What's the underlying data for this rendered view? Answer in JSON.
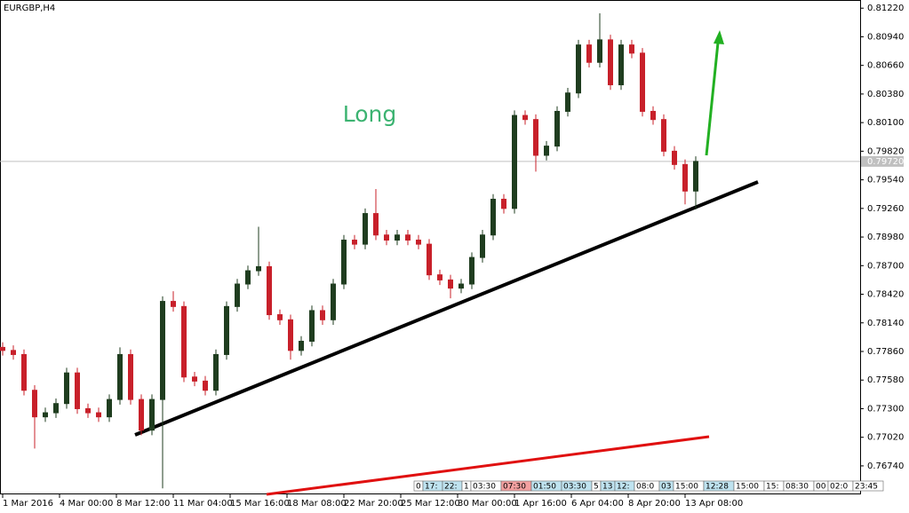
{
  "chart_data": {
    "type": "candlestick",
    "title": "EURGBP,H4",
    "annotation": "Long",
    "up_color": "#1f3d1f",
    "down_color": "#c8202a",
    "x": [
      0,
      3,
      6,
      9,
      12,
      15,
      18,
      21,
      24,
      27,
      30,
      33,
      36,
      39,
      42,
      45,
      48,
      51,
      54,
      57,
      60,
      63,
      66,
      69,
      72,
      75,
      78,
      81,
      84,
      87,
      90,
      93,
      96,
      99,
      102,
      105,
      108,
      111,
      114,
      117,
      120,
      123,
      126,
      129,
      132,
      135,
      138,
      141,
      144,
      147,
      150,
      153,
      156,
      159,
      162,
      165,
      168,
      171,
      174,
      177,
      180,
      183,
      186,
      189,
      192,
      195
    ],
    "open": [
      0.779,
      0.7787,
      0.7783,
      0.7748,
      0.7722,
      0.7726,
      0.7735,
      0.7765,
      0.773,
      0.7726,
      0.7722,
      0.7739,
      0.7783,
      0.7739,
      0.7709,
      0.7739,
      0.7835,
      0.783,
      0.7761,
      0.7757,
      0.7748,
      0.7783,
      0.783,
      0.7852,
      0.7865,
      0.7869,
      0.7822,
      0.7817,
      0.7787,
      0.7796,
      0.7826,
      0.7817,
      0.7852,
      0.7895,
      0.7891,
      0.7921,
      0.79,
      0.7895,
      0.79,
      0.7895,
      0.7891,
      0.7861,
      0.7856,
      0.7848,
      0.7852,
      0.7878,
      0.79,
      0.7935,
      0.7926,
      0.8017,
      0.8013,
      0.7978,
      0.7987,
      0.8021,
      0.8039,
      0.8086,
      0.8069,
      0.8091,
      0.8047,
      0.8086,
      0.8078,
      0.8021,
      0.8013,
      0.7982,
      0.7969,
      0.7943
    ],
    "high": [
      0.7795,
      0.7792,
      0.7788,
      0.7753,
      0.7731,
      0.774,
      0.777,
      0.777,
      0.7735,
      0.7731,
      0.7744,
      0.779,
      0.7788,
      0.7744,
      0.7744,
      0.784,
      0.7845,
      0.7835,
      0.7766,
      0.7762,
      0.7788,
      0.7835,
      0.7857,
      0.787,
      0.7908,
      0.7874,
      0.7827,
      0.7822,
      0.7801,
      0.7831,
      0.7831,
      0.7857,
      0.79,
      0.79,
      0.7926,
      0.7945,
      0.7905,
      0.7905,
      0.7905,
      0.79,
      0.7896,
      0.7866,
      0.7861,
      0.7857,
      0.7883,
      0.7905,
      0.794,
      0.794,
      0.8022,
      0.8022,
      0.8018,
      0.7992,
      0.8026,
      0.8044,
      0.8091,
      0.8091,
      0.8117,
      0.8096,
      0.8091,
      0.8091,
      0.8083,
      0.8026,
      0.8018,
      0.7987,
      0.7974,
      0.7977
    ],
    "low": [
      0.7782,
      0.7778,
      0.7743,
      0.7691,
      0.7717,
      0.7721,
      0.773,
      0.7725,
      0.7721,
      0.7717,
      0.7717,
      0.7734,
      0.7734,
      0.7704,
      0.7704,
      0.7652,
      0.7825,
      0.7756,
      0.7752,
      0.7743,
      0.7743,
      0.7778,
      0.7825,
      0.7847,
      0.786,
      0.7817,
      0.7812,
      0.7778,
      0.7782,
      0.7791,
      0.7812,
      0.7812,
      0.7847,
      0.7886,
      0.7886,
      0.7895,
      0.789,
      0.789,
      0.789,
      0.7886,
      0.7856,
      0.7851,
      0.7838,
      0.7843,
      0.7847,
      0.7873,
      0.7895,
      0.7921,
      0.7921,
      0.8008,
      0.7962,
      0.7973,
      0.7982,
      0.8016,
      0.8034,
      0.8064,
      0.8064,
      0.8042,
      0.8042,
      0.8073,
      0.8016,
      0.8008,
      0.7977,
      0.7964,
      0.793,
      0.7925
    ],
    "close": [
      0.7787,
      0.7783,
      0.7748,
      0.7722,
      0.7726,
      0.7735,
      0.7765,
      0.773,
      0.7726,
      0.7722,
      0.7739,
      0.7783,
      0.7739,
      0.7709,
      0.7739,
      0.7835,
      0.783,
      0.7761,
      0.7757,
      0.7748,
      0.7783,
      0.783,
      0.7852,
      0.7865,
      0.7869,
      0.7822,
      0.7817,
      0.7787,
      0.7796,
      0.7826,
      0.7817,
      0.7852,
      0.7895,
      0.7891,
      0.7921,
      0.79,
      0.7895,
      0.79,
      0.7895,
      0.7891,
      0.7861,
      0.7856,
      0.7848,
      0.7852,
      0.7878,
      0.79,
      0.7935,
      0.7926,
      0.8017,
      0.8013,
      0.7978,
      0.7987,
      0.8021,
      0.8039,
      0.8086,
      0.8069,
      0.8091,
      0.8047,
      0.8086,
      0.8078,
      0.8021,
      0.8013,
      0.7982,
      0.7969,
      0.7943,
      0.7972
    ],
    "xlim": [
      0,
      241.25
    ],
    "xticks": [
      {
        "value": 0,
        "label": "1 Mar 2016"
      },
      {
        "value": 16,
        "label": "4 Mar 00:00"
      },
      {
        "value": 32,
        "label": "8 Mar 12:00"
      },
      {
        "value": 48,
        "label": "11 Mar 04:00"
      },
      {
        "value": 64,
        "label": "15 Mar 16:00"
      },
      {
        "value": 80,
        "label": "18 Mar 08:00"
      },
      {
        "value": 96,
        "label": "22 Mar 20:00"
      },
      {
        "value": 112,
        "label": "25 Mar 12:00"
      },
      {
        "value": 128,
        "label": "30 Mar 00:00"
      },
      {
        "value": 144,
        "label": "1 Apr 16:00"
      },
      {
        "value": 160,
        "label": "6 Apr 04:00"
      },
      {
        "value": 176,
        "label": "8 Apr 20:00"
      },
      {
        "value": 192,
        "label": "13 Apr 08:00"
      }
    ],
    "ylim": [
      0.7647,
      0.813
    ],
    "yticks": [
      {
        "value": 0.8122,
        "label": "0.81220"
      },
      {
        "value": 0.8094,
        "label": "0.80940"
      },
      {
        "value": 0.8066,
        "label": "0.80660"
      },
      {
        "value": 0.8038,
        "label": "0.80380"
      },
      {
        "value": 0.801,
        "label": "0.80100"
      },
      {
        "value": 0.7982,
        "label": "0.79820"
      },
      {
        "value": 0.7954,
        "label": "0.79540"
      },
      {
        "value": 0.7926,
        "label": "0.79260"
      },
      {
        "value": 0.7898,
        "label": "0.78980"
      },
      {
        "value": 0.787,
        "label": "0.78700"
      },
      {
        "value": 0.7842,
        "label": "0.78420"
      },
      {
        "value": 0.7814,
        "label": "0.78140"
      },
      {
        "value": 0.7786,
        "label": "0.77860"
      },
      {
        "value": 0.7758,
        "label": "0.77580"
      },
      {
        "value": 0.773,
        "label": "0.77300"
      },
      {
        "value": 0.7702,
        "label": "0.77020"
      },
      {
        "value": 0.7674,
        "label": "0.76740"
      }
    ],
    "current_price": {
      "value": 0.7972,
      "label": "0.79720"
    },
    "events": [
      {
        "text": "0",
        "color": "#ffffff"
      },
      {
        "text": "17:",
        "color": "#bfe3f0"
      },
      {
        "text": "22:",
        "color": "#bfe3f0"
      },
      {
        "text": "1",
        "color": "#ffffff"
      },
      {
        "text": "03:30",
        "color": "#ffffff"
      },
      {
        "text": "07:30",
        "color": "#f4a0a0"
      },
      {
        "text": "01:50",
        "color": "#bfe3f0"
      },
      {
        "text": "03:30",
        "color": "#bfe3f0"
      },
      {
        "text": "5",
        "color": "#ffffff"
      },
      {
        "text": "13",
        "color": "#bfe3f0"
      },
      {
        "text": "12:",
        "color": "#bfe3f0"
      },
      {
        "text": "08:0",
        "color": "#ffffff"
      },
      {
        "text": "03",
        "color": "#bfe3f0"
      },
      {
        "text": "15:00",
        "color": "#ffffff"
      },
      {
        "text": "12:28",
        "color": "#bfe3f0"
      },
      {
        "text": "15:00",
        "color": "#ffffff"
      },
      {
        "text": "15:",
        "color": "#ffffff"
      },
      {
        "text": "08:30",
        "color": "#ffffff"
      },
      {
        "text": "00",
        "color": "#ffffff"
      },
      {
        "text": "02:0",
        "color": "#ffffff"
      },
      {
        "text": "23:45",
        "color": "#ffffff"
      }
    ]
  }
}
